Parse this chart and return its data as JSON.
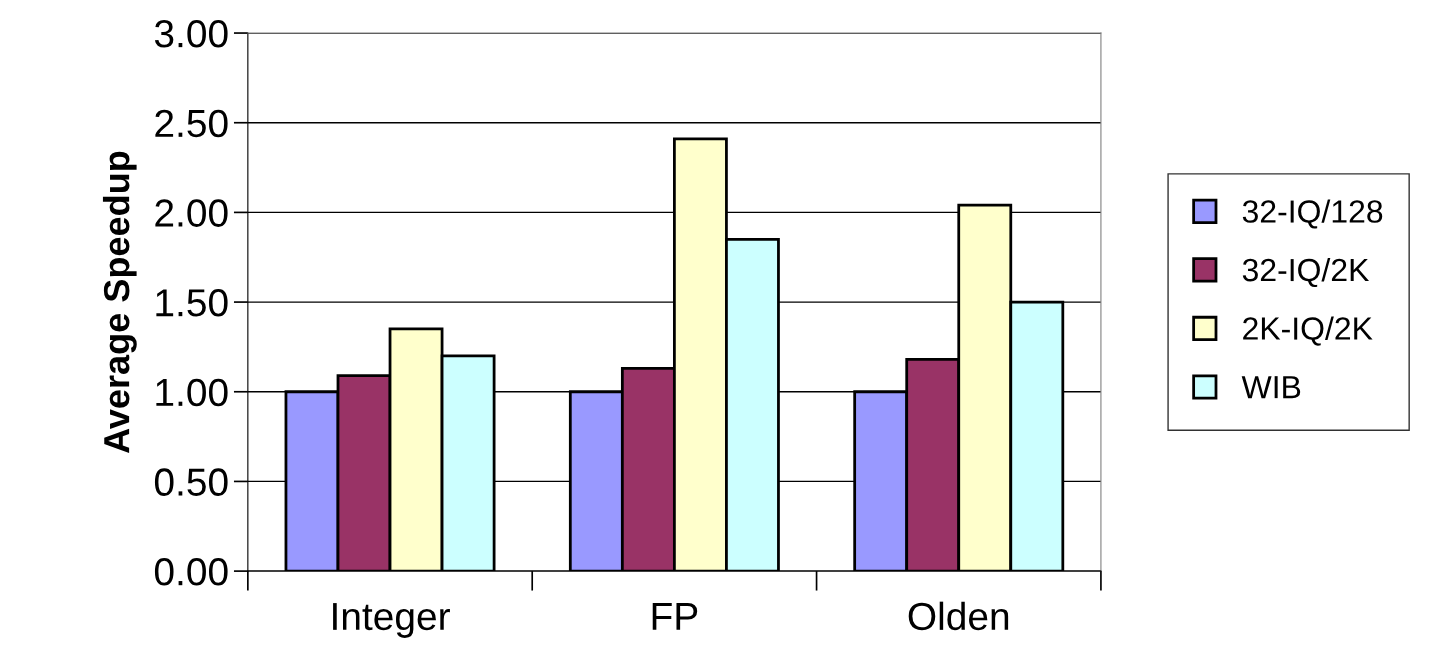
{
  "chart_data": {
    "type": "bar",
    "ylabel": "Average Speedup",
    "categories": [
      "Integer",
      "FP",
      "Olden"
    ],
    "series": [
      {
        "name": "32-IQ/128",
        "color": "#9999ff",
        "values": [
          1.0,
          1.0,
          1.0
        ]
      },
      {
        "name": "32-IQ/2K",
        "color": "#993366",
        "values": [
          1.09,
          1.13,
          1.18
        ]
      },
      {
        "name": "2K-IQ/2K",
        "color": "#ffffcc",
        "values": [
          1.35,
          2.41,
          2.04
        ]
      },
      {
        "name": "WIB",
        "color": "#ccffff",
        "values": [
          1.2,
          1.85,
          1.5
        ]
      }
    ],
    "ylim": [
      0,
      3
    ],
    "yticks": [
      {
        "value": 0,
        "label": "0.00"
      },
      {
        "value": 0.5,
        "label": "0.50"
      },
      {
        "value": 1,
        "label": "1.00"
      },
      {
        "value": 1.5,
        "label": "1.50"
      },
      {
        "value": 2,
        "label": "2.00"
      },
      {
        "value": 2.5,
        "label": "2.50"
      },
      {
        "value": 3,
        "label": "3.00"
      }
    ],
    "grid": "y",
    "legend": "right"
  }
}
